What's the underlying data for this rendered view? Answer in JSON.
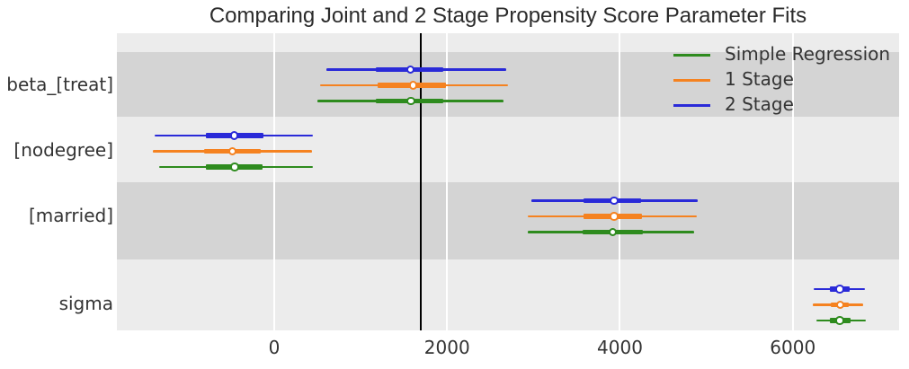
{
  "chart_data": {
    "type": "forest",
    "title": "Comparing Joint and 2 Stage Propensity Score Parameter Fits",
    "xlabel": "",
    "ylabel": "",
    "x_ticks": [
      0,
      2000,
      4000,
      6000
    ],
    "xlim": [
      -1820,
      7230
    ],
    "grid": "vertical white gridlines on gray background",
    "reference_line_x": 1700,
    "legend": {
      "position": "upper-right",
      "entries": [
        {
          "label": "Simple Regression",
          "color_key": "simple"
        },
        {
          "label": "1 Stage",
          "color_key": "one_stage"
        },
        {
          "label": "2 Stage",
          "color_key": "two_stage"
        }
      ]
    },
    "colors": {
      "simple": "#2e8b1e",
      "one_stage": "#f58220",
      "two_stage": "#2a2ad8",
      "reference_line": "#000000",
      "band_dark": "#d4d4d4",
      "band_light": "#ececec",
      "gridline": "#ffffff",
      "text": "#333333"
    },
    "parameters": [
      {
        "name": "beta_[treat]",
        "shaded": true,
        "estimates": [
          {
            "model": "2 Stage",
            "color_key": "two_stage",
            "ci_low": 600,
            "q1": 1180,
            "median": 1575,
            "q3": 1960,
            "ci_high": 2680
          },
          {
            "model": "1 Stage",
            "color_key": "one_stage",
            "ci_low": 535,
            "q1": 1195,
            "median": 1610,
            "q3": 1990,
            "ci_high": 2700
          },
          {
            "model": "Simple Regression",
            "color_key": "simple",
            "ci_low": 495,
            "q1": 1180,
            "median": 1580,
            "q3": 1960,
            "ci_high": 2650
          }
        ]
      },
      {
        "name": "[nodegree]",
        "shaded": false,
        "estimates": [
          {
            "model": "2 Stage",
            "color_key": "two_stage",
            "ci_low": -1380,
            "q1": -790,
            "median": -460,
            "q3": -120,
            "ci_high": 450
          },
          {
            "model": "1 Stage",
            "color_key": "one_stage",
            "ci_low": -1400,
            "q1": -810,
            "median": -485,
            "q3": -155,
            "ci_high": 435
          },
          {
            "model": "Simple Regression",
            "color_key": "simple",
            "ci_low": -1335,
            "q1": -790,
            "median": -455,
            "q3": -130,
            "ci_high": 445
          }
        ]
      },
      {
        "name": "[married]",
        "shaded": true,
        "estimates": [
          {
            "model": "2 Stage",
            "color_key": "two_stage",
            "ci_low": 2975,
            "q1": 3580,
            "median": 3935,
            "q3": 4245,
            "ci_high": 4900
          },
          {
            "model": "1 Stage",
            "color_key": "one_stage",
            "ci_low": 2930,
            "q1": 3580,
            "median": 3935,
            "q3": 4255,
            "ci_high": 4890
          },
          {
            "model": "Simple Regression",
            "color_key": "simple",
            "ci_low": 2930,
            "q1": 3570,
            "median": 3915,
            "q3": 4270,
            "ci_high": 4855
          }
        ]
      },
      {
        "name": "sigma",
        "shaded": false,
        "estimates": [
          {
            "model": "2 Stage",
            "color_key": "two_stage",
            "ci_low": 6240,
            "q1": 6430,
            "median": 6545,
            "q3": 6655,
            "ci_high": 6830
          },
          {
            "model": "1 Stage",
            "color_key": "one_stage",
            "ci_low": 6230,
            "q1": 6440,
            "median": 6550,
            "q3": 6650,
            "ci_high": 6810
          },
          {
            "model": "Simple Regression",
            "color_key": "simple",
            "ci_low": 6275,
            "q1": 6430,
            "median": 6545,
            "q3": 6665,
            "ci_high": 6840
          }
        ]
      }
    ]
  }
}
